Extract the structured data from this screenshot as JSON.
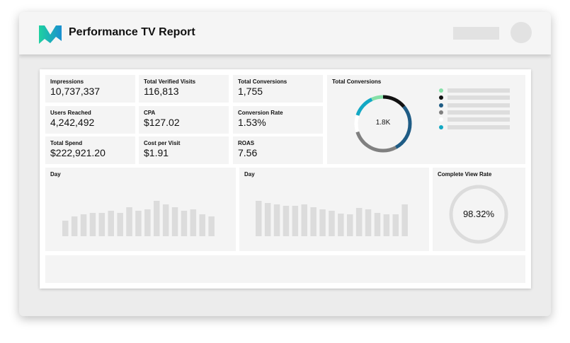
{
  "header": {
    "title": "Performance TV Report"
  },
  "metrics": [
    {
      "label": "Impressions",
      "value": "10,737,337"
    },
    {
      "label": "Total Verified Visits",
      "value": "116,813"
    },
    {
      "label": "Total Conversions",
      "value": "1,755"
    },
    {
      "label": "Users Reached",
      "value": "4,242,492"
    },
    {
      "label": "CPA",
      "value": "$127.02"
    },
    {
      "label": "Conversion Rate",
      "value": "1.53%"
    },
    {
      "label": "Total Spend",
      "value": "$222,921.20"
    },
    {
      "label": "Cost per Visit",
      "value": "$1.91"
    },
    {
      "label": "ROAS",
      "value": "7.56"
    }
  ],
  "donut": {
    "title": "Total Conversions",
    "center": "1.8K",
    "segments": [
      {
        "color": "#111111",
        "pct": 14
      },
      {
        "color": "#1f5c85",
        "pct": 28
      },
      {
        "color": "#808080",
        "pct": 28
      },
      {
        "color": "#ffffff",
        "pct": 10
      },
      {
        "color": "#13a8c4",
        "pct": 13
      },
      {
        "color": "#86e0a8",
        "pct": 7
      }
    ],
    "legend_colors": [
      "#86e0a8",
      "#111111",
      "#1f5c85",
      "#808080",
      "#ffffff",
      "#13a8c4"
    ]
  },
  "chart_data": [
    {
      "type": "bar",
      "xlabel": "Day",
      "values": [
        22,
        28,
        31,
        33,
        33,
        36,
        33,
        41,
        36,
        38,
        50,
        45,
        41,
        36,
        38,
        31,
        28
      ]
    },
    {
      "type": "bar",
      "xlabel": "Day",
      "values": [
        50,
        47,
        45,
        43,
        43,
        45,
        41,
        38,
        36,
        32,
        31,
        40,
        38,
        33,
        31,
        31,
        45
      ]
    }
  ],
  "cvr": {
    "title": "Complete View Rate",
    "value": "98.32%",
    "pct": 98.32
  }
}
